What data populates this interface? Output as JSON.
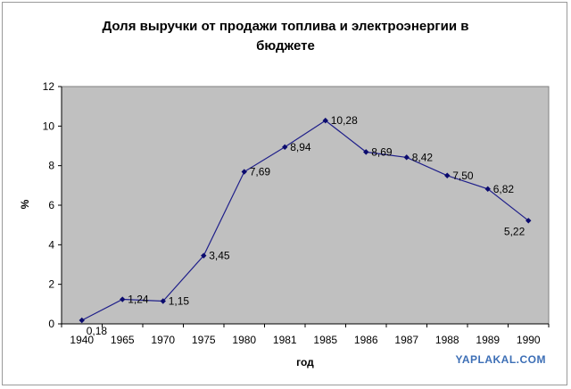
{
  "chart_data": {
    "type": "line",
    "title": "Доля выручки от продажи топлива и электроэнергии в бюджете",
    "title_lines": [
      "Доля выручки от продажи топлива и электроэнергии в",
      "бюджете"
    ],
    "xlabel": "год",
    "ylabel": "%",
    "categories": [
      "1940",
      "1965",
      "1970",
      "1975",
      "1980",
      "1981",
      "1985",
      "1986",
      "1987",
      "1988",
      "1989",
      "1990"
    ],
    "values": [
      0.18,
      1.24,
      1.15,
      3.45,
      7.69,
      8.94,
      10.28,
      8.69,
      8.42,
      7.5,
      6.82,
      5.22
    ],
    "data_labels": [
      "0,18",
      "1,24",
      "1,15",
      "3,45",
      "7,69",
      "8,94",
      "10,28",
      "8,69",
      "8,42",
      "7,50",
      "6,82",
      "5,22"
    ],
    "ylim": [
      0,
      12
    ],
    "yticks": [
      "0",
      "2",
      "4",
      "6",
      "8",
      "10",
      "12"
    ],
    "grid": false,
    "legend": "none",
    "colors": {
      "plot_background": "#c0c0c0",
      "line": "#1f1f8a",
      "marker": "#0b0b6e"
    }
  },
  "watermark": "YAPLAKAL.COM"
}
